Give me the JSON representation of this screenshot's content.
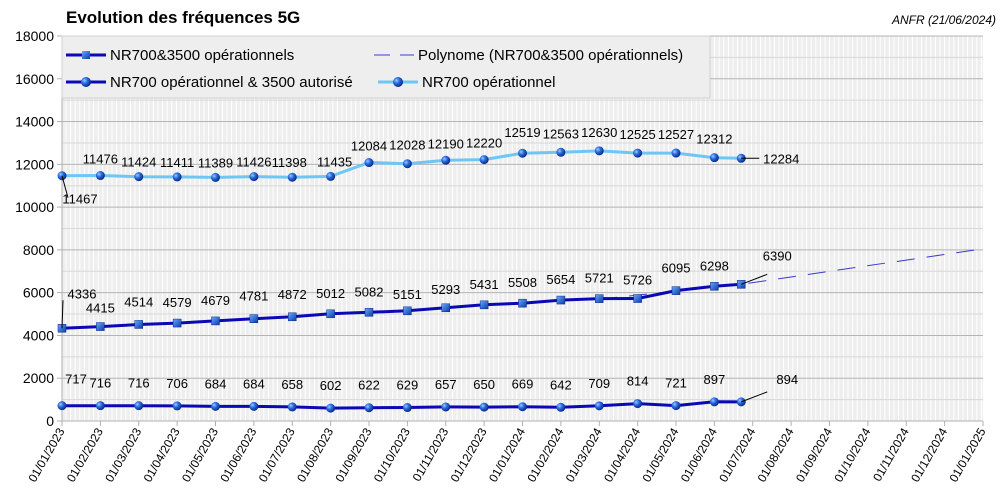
{
  "chart_data": {
    "type": "line",
    "title": "Evolution des fréquences 5G",
    "source_note": "ANFR (21/06/2024)",
    "xlabel": "",
    "ylabel": "",
    "ylim": [
      0,
      18000
    ],
    "y_ticks": [
      "0",
      "2000",
      "4000",
      "6000",
      "8000",
      "10000",
      "12000",
      "14000",
      "16000",
      "18000"
    ],
    "y_tick_values": [
      0,
      2000,
      4000,
      6000,
      8000,
      10000,
      12000,
      14000,
      16000,
      18000
    ],
    "x_ticks": [
      "01/01/2023",
      "01/02/2023",
      "01/03/2023",
      "01/04/2023",
      "01/05/2023",
      "01/06/2023",
      "01/07/2023",
      "01/08/2023",
      "01/09/2023",
      "01/10/2023",
      "01/11/2023",
      "01/12/2023",
      "01/01/2024",
      "01/02/2024",
      "01/03/2024",
      "01/04/2024",
      "01/05/2024",
      "01/06/2024",
      "01/07/2024",
      "01/08/2024",
      "01/09/2024",
      "01/10/2024",
      "01/11/2024",
      "01/12/2024",
      "01/01/2025"
    ],
    "x_tick_month_index": [
      0,
      1,
      2,
      3,
      4,
      5,
      6,
      7,
      8,
      9,
      10,
      11,
      12,
      13,
      14,
      15,
      16,
      17,
      18,
      19,
      20,
      21,
      22,
      23,
      24
    ],
    "xlim_month_index": [
      0,
      24
    ],
    "grid": true,
    "legend_position": "top-left",
    "x": [
      0,
      1,
      2,
      3,
      4,
      5,
      6,
      7,
      8,
      9,
      10,
      11,
      12,
      13,
      14,
      15,
      16,
      17,
      17.7
    ],
    "series": [
      {
        "name": "NR700 opérationnel",
        "color": "#6ec6f5",
        "marker": "sphere",
        "values": [
          11467,
          11476,
          11424,
          11411,
          11389,
          11426,
          11398,
          11435,
          12084,
          12028,
          12190,
          12220,
          12519,
          12563,
          12630,
          12525,
          12527,
          12312,
          12284
        ],
        "labels": [
          "11467",
          "11476",
          "11424",
          "11411",
          "11389",
          "11426",
          "11398",
          "11435",
          "12084",
          "12028",
          "12190",
          "12220",
          "12519",
          "12563",
          "12630",
          "12525",
          "12527",
          "12312",
          "12284"
        ]
      },
      {
        "name": "NR700&3500 opérationnels",
        "color": "#0a0ab4",
        "marker": "square",
        "values": [
          4336,
          4415,
          4514,
          4579,
          4679,
          4781,
          4872,
          5012,
          5082,
          5151,
          5293,
          5431,
          5508,
          5654,
          5721,
          5726,
          6095,
          6298,
          6390
        ],
        "labels": [
          "4336",
          "4415",
          "4514",
          "4579",
          "4679",
          "4781",
          "4872",
          "5012",
          "5082",
          "5151",
          "5293",
          "5431",
          "5508",
          "5654",
          "5721",
          "5726",
          "6095",
          "6298",
          "6390"
        ]
      },
      {
        "name": "NR700 opérationnel & 3500 autorisé",
        "color": "#0a0ab4",
        "marker": "sphere",
        "values": [
          717,
          716,
          716,
          706,
          684,
          684,
          658,
          602,
          622,
          629,
          657,
          650,
          669,
          642,
          709,
          814,
          721,
          897,
          894
        ],
        "labels": [
          "717",
          "716",
          "716",
          "706",
          "684",
          "684",
          "658",
          "602",
          "622",
          "629",
          "657",
          "650",
          "669",
          "642",
          "709",
          "814",
          "721",
          "897",
          "894"
        ]
      },
      {
        "name": "Polynome (NR700&3500 opérationnels)",
        "color": "#3a3ad0",
        "style": "dashed",
        "x": [
          14,
          17.7,
          24
        ],
        "values": [
          5700,
          6390,
          8050
        ]
      }
    ],
    "legend": [
      "NR700&3500 opérationnels",
      "Polynome (NR700&3500 opérationnels)",
      "NR700 opérationnel & 3500 autorisé",
      "NR700 opérationnel"
    ]
  }
}
